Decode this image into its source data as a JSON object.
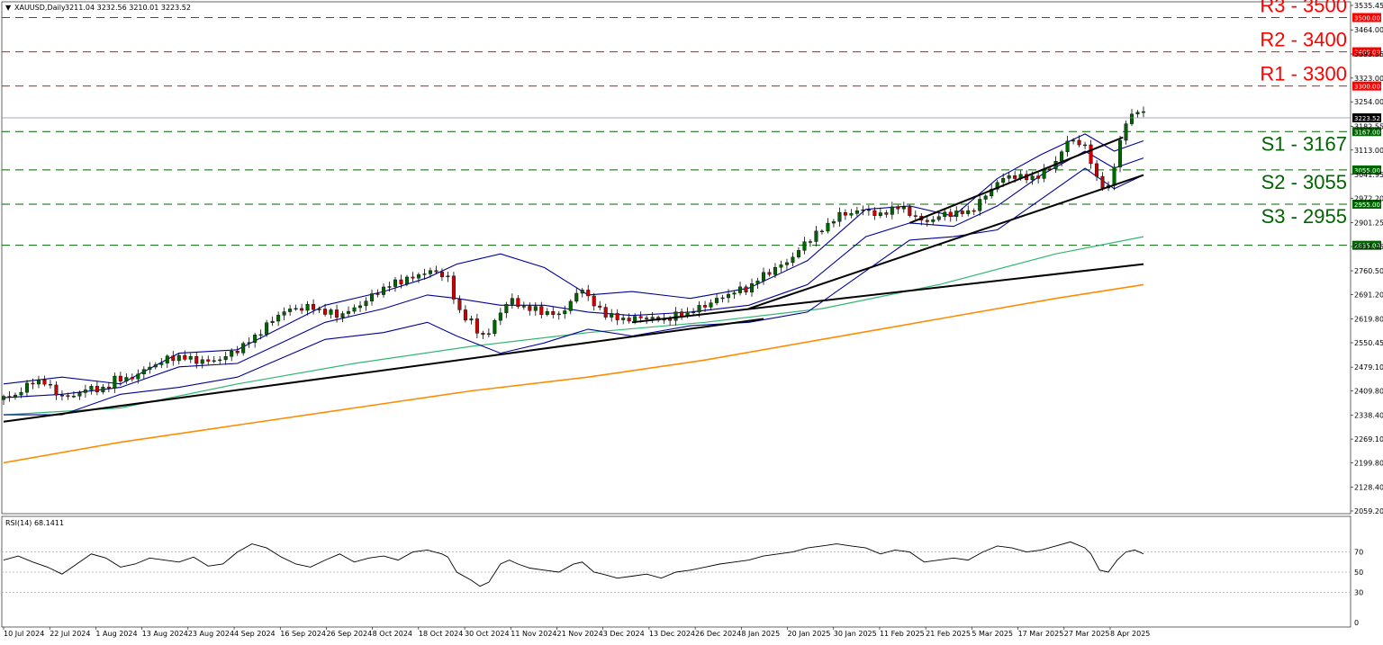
{
  "header": {
    "arrow_glyph": "▼",
    "symbol": "XAUUSD,Daily",
    "ohlc": "3211.04 3232.56 3210.01 3223.52"
  },
  "rsi_panel": {
    "title": "RSI(14) 68.1411",
    "levels": [
      "70",
      "50",
      "30",
      "0"
    ]
  },
  "price_axis": {
    "ticks": [
      "3535.45",
      "3464.00",
      "3393.55",
      "3323.00",
      "3254.00",
      "3182.55",
      "3113.00",
      "3041.95",
      "2972.20",
      "2901.25",
      "2831.45",
      "2760.50",
      "2691.20",
      "2619.80",
      "2550.45",
      "2479.10",
      "2409.80",
      "2338.40",
      "2269.10",
      "2199.80",
      "2128.40",
      "2059.20"
    ],
    "current_price": "3223.52"
  },
  "levels": [
    {
      "type": "resistance",
      "label": "R3 - 3500",
      "price_tag": "3500.00",
      "value": 3500
    },
    {
      "type": "resistance",
      "label": "R2 - 3400",
      "price_tag": "3400.00",
      "value": 3400
    },
    {
      "type": "resistance",
      "label": "R1 - 3300",
      "price_tag": "3300.00",
      "value": 3300
    },
    {
      "type": "support",
      "label": "S1 - 3167",
      "price_tag": "3167.00",
      "value": 3167
    },
    {
      "type": "support",
      "label": "S2 - 3055",
      "price_tag": "3055.00",
      "value": 3055
    },
    {
      "type": "support",
      "label": "S3 - 2955",
      "price_tag": "2955.00",
      "value": 2955
    },
    {
      "type": "support",
      "label": "",
      "price_tag": "2835.00",
      "value": 2835
    }
  ],
  "colors": {
    "resistance": "#ff0000",
    "support": "#006400",
    "bull": "#006400",
    "bear": "#cc0000",
    "bollinger": "#000099",
    "ma_mid": "#2eb872",
    "ma_long": "#ff8c00",
    "rsi": "#000000"
  },
  "chart_data": {
    "type": "candlestick",
    "title": "XAUUSD,Daily",
    "x_ticks": [
      "10 Jul 2024",
      "22 Jul 2024",
      "1 Aug 2024",
      "13 Aug 2024",
      "23 Aug 2024",
      "4 Sep 2024",
      "16 Sep 2024",
      "26 Sep 2024",
      "8 Oct 2024",
      "18 Oct 2024",
      "30 Oct 2024",
      "11 Nov 2024",
      "21 Nov 2024",
      "3 Dec 2024",
      "13 Dec 2024",
      "26 Dec 2024",
      "8 Jan 2025",
      "20 Jan 2025",
      "30 Jan 2025",
      "11 Feb 2025",
      "21 Feb 2025",
      "5 Mar 2025",
      "17 Mar 2025",
      "27 Mar 2025",
      "8 Apr 2025"
    ],
    "ylim": [
      2059.2,
      3535.45
    ],
    "close_path": [
      [
        0,
        2390
      ],
      [
        5,
        2400
      ],
      [
        10,
        2440
      ],
      [
        15,
        2430
      ],
      [
        20,
        2390
      ],
      [
        25,
        2400
      ],
      [
        30,
        2420
      ],
      [
        35,
        2410
      ],
      [
        38,
        2450
      ],
      [
        42,
        2440
      ],
      [
        48,
        2470
      ],
      [
        55,
        2500
      ],
      [
        60,
        2510
      ],
      [
        65,
        2500
      ],
      [
        70,
        2495
      ],
      [
        75,
        2505
      ],
      [
        80,
        2530
      ],
      [
        85,
        2560
      ],
      [
        90,
        2600
      ],
      [
        95,
        2640
      ],
      [
        100,
        2650
      ],
      [
        105,
        2655
      ],
      [
        110,
        2640
      ],
      [
        115,
        2630
      ],
      [
        120,
        2650
      ],
      [
        125,
        2680
      ],
      [
        130,
        2710
      ],
      [
        135,
        2730
      ],
      [
        140,
        2740
      ],
      [
        145,
        2760
      ],
      [
        150,
        2750
      ],
      [
        152,
        2740
      ],
      [
        155,
        2650
      ],
      [
        160,
        2610
      ],
      [
        163,
        2570
      ],
      [
        166,
        2580
      ],
      [
        170,
        2640
      ],
      [
        173,
        2680
      ],
      [
        176,
        2660
      ],
      [
        180,
        2650
      ],
      [
        185,
        2640
      ],
      [
        190,
        2630
      ],
      [
        195,
        2680
      ],
      [
        198,
        2710
      ],
      [
        202,
        2660
      ],
      [
        205,
        2640
      ],
      [
        210,
        2620
      ],
      [
        215,
        2620
      ],
      [
        220,
        2625
      ],
      [
        225,
        2615
      ],
      [
        230,
        2630
      ],
      [
        235,
        2640
      ],
      [
        240,
        2660
      ],
      [
        245,
        2680
      ],
      [
        250,
        2700
      ],
      [
        255,
        2710
      ],
      [
        260,
        2750
      ],
      [
        265,
        2770
      ],
      [
        270,
        2800
      ],
      [
        275,
        2850
      ],
      [
        280,
        2880
      ],
      [
        285,
        2920
      ],
      [
        290,
        2930
      ],
      [
        295,
        2940
      ],
      [
        300,
        2920
      ],
      [
        305,
        2950
      ],
      [
        310,
        2930
      ],
      [
        315,
        2900
      ],
      [
        320,
        2920
      ],
      [
        325,
        2930
      ],
      [
        330,
        2930
      ],
      [
        335,
        2970
      ],
      [
        340,
        3020
      ],
      [
        345,
        3040
      ],
      [
        350,
        3030
      ],
      [
        355,
        3040
      ],
      [
        360,
        3080
      ],
      [
        365,
        3150
      ],
      [
        370,
        3120
      ],
      [
        372,
        3080
      ],
      [
        375,
        3010
      ],
      [
        378,
        3000
      ],
      [
        381,
        3110
      ],
      [
        384,
        3190
      ],
      [
        387,
        3230
      ],
      [
        390,
        3223.52
      ]
    ],
    "x_max": 390,
    "bollinger": {
      "upper": [
        [
          0,
          2430
        ],
        [
          20,
          2450
        ],
        [
          40,
          2430
        ],
        [
          60,
          2520
        ],
        [
          80,
          2530
        ],
        [
          110,
          2660
        ],
        [
          130,
          2700
        ],
        [
          145,
          2740
        ],
        [
          155,
          2780
        ],
        [
          170,
          2810
        ],
        [
          185,
          2770
        ],
        [
          200,
          2690
        ],
        [
          215,
          2700
        ],
        [
          235,
          2680
        ],
        [
          255,
          2710
        ],
        [
          275,
          2790
        ],
        [
          295,
          2940
        ],
        [
          310,
          2950
        ],
        [
          325,
          2920
        ],
        [
          340,
          3030
        ],
        [
          355,
          3100
        ],
        [
          370,
          3160
        ],
        [
          380,
          3110
        ],
        [
          390,
          3140
        ]
      ],
      "middle": [
        [
          0,
          2390
        ],
        [
          20,
          2400
        ],
        [
          40,
          2420
        ],
        [
          60,
          2480
        ],
        [
          80,
          2490
        ],
        [
          110,
          2610
        ],
        [
          130,
          2650
        ],
        [
          145,
          2690
        ],
        [
          155,
          2680
        ],
        [
          170,
          2660
        ],
        [
          185,
          2660
        ],
        [
          200,
          2640
        ],
        [
          215,
          2630
        ],
        [
          235,
          2640
        ],
        [
          255,
          2660
        ],
        [
          275,
          2720
        ],
        [
          295,
          2860
        ],
        [
          310,
          2900
        ],
        [
          325,
          2890
        ],
        [
          340,
          2950
        ],
        [
          355,
          3040
        ],
        [
          370,
          3110
        ],
        [
          380,
          3060
        ],
        [
          390,
          3090
        ]
      ],
      "lower": [
        [
          0,
          2340
        ],
        [
          20,
          2340
        ],
        [
          40,
          2400
        ],
        [
          60,
          2420
        ],
        [
          80,
          2450
        ],
        [
          110,
          2560
        ],
        [
          130,
          2580
        ],
        [
          145,
          2610
        ],
        [
          155,
          2570
        ],
        [
          170,
          2520
        ],
        [
          185,
          2550
        ],
        [
          200,
          2590
        ],
        [
          215,
          2570
        ],
        [
          235,
          2600
        ],
        [
          255,
          2610
        ],
        [
          275,
          2640
        ],
        [
          295,
          2760
        ],
        [
          310,
          2850
        ],
        [
          325,
          2860
        ],
        [
          340,
          2880
        ],
        [
          355,
          2970
        ],
        [
          370,
          3060
        ],
        [
          380,
          3000
        ],
        [
          390,
          3040
        ]
      ]
    },
    "ma_mid": [
      [
        0,
        2340
      ],
      [
        40,
        2360
      ],
      [
        80,
        2430
      ],
      [
        120,
        2490
      ],
      [
        160,
        2540
      ],
      [
        200,
        2580
      ],
      [
        240,
        2610
      ],
      [
        280,
        2650
      ],
      [
        320,
        2720
      ],
      [
        360,
        2810
      ],
      [
        390,
        2860
      ]
    ],
    "ma_long": [
      [
        0,
        2200
      ],
      [
        40,
        2260
      ],
      [
        80,
        2310
      ],
      [
        120,
        2360
      ],
      [
        160,
        2410
      ],
      [
        200,
        2450
      ],
      [
        240,
        2500
      ],
      [
        280,
        2560
      ],
      [
        320,
        2620
      ],
      [
        360,
        2680
      ],
      [
        390,
        2720
      ]
    ],
    "trendlines": [
      [
        [
          0,
          2320
        ],
        [
          260,
          2620
        ]
      ],
      [
        [
          215,
          2610
        ],
        [
          390,
          2780
        ]
      ],
      [
        [
          255,
          2650
        ],
        [
          390,
          3040
        ]
      ],
      [
        [
          310,
          2900
        ],
        [
          383,
          3150
        ]
      ]
    ],
    "rsi": [
      [
        0,
        62
      ],
      [
        5,
        66
      ],
      [
        10,
        60
      ],
      [
        15,
        55
      ],
      [
        20,
        48
      ],
      [
        25,
        58
      ],
      [
        30,
        68
      ],
      [
        35,
        64
      ],
      [
        40,
        55
      ],
      [
        45,
        58
      ],
      [
        50,
        64
      ],
      [
        55,
        62
      ],
      [
        60,
        60
      ],
      [
        65,
        65
      ],
      [
        70,
        56
      ],
      [
        75,
        58
      ],
      [
        80,
        70
      ],
      [
        85,
        78
      ],
      [
        90,
        74
      ],
      [
        95,
        65
      ],
      [
        100,
        58
      ],
      [
        105,
        55
      ],
      [
        110,
        62
      ],
      [
        115,
        68
      ],
      [
        120,
        60
      ],
      [
        125,
        64
      ],
      [
        130,
        66
      ],
      [
        135,
        62
      ],
      [
        140,
        70
      ],
      [
        145,
        72
      ],
      [
        150,
        68
      ],
      [
        152,
        65
      ],
      [
        155,
        50
      ],
      [
        160,
        42
      ],
      [
        163,
        36
      ],
      [
        166,
        40
      ],
      [
        170,
        58
      ],
      [
        173,
        62
      ],
      [
        176,
        58
      ],
      [
        180,
        54
      ],
      [
        185,
        52
      ],
      [
        190,
        50
      ],
      [
        195,
        58
      ],
      [
        198,
        60
      ],
      [
        202,
        50
      ],
      [
        205,
        48
      ],
      [
        210,
        44
      ],
      [
        215,
        46
      ],
      [
        220,
        48
      ],
      [
        225,
        44
      ],
      [
        230,
        50
      ],
      [
        235,
        52
      ],
      [
        240,
        55
      ],
      [
        245,
        58
      ],
      [
        250,
        60
      ],
      [
        255,
        62
      ],
      [
        260,
        66
      ],
      [
        265,
        68
      ],
      [
        270,
        70
      ],
      [
        275,
        74
      ],
      [
        280,
        76
      ],
      [
        285,
        78
      ],
      [
        290,
        76
      ],
      [
        295,
        74
      ],
      [
        300,
        68
      ],
      [
        305,
        72
      ],
      [
        310,
        70
      ],
      [
        315,
        60
      ],
      [
        320,
        62
      ],
      [
        325,
        64
      ],
      [
        330,
        62
      ],
      [
        335,
        70
      ],
      [
        340,
        76
      ],
      [
        345,
        74
      ],
      [
        350,
        70
      ],
      [
        355,
        72
      ],
      [
        360,
        76
      ],
      [
        365,
        80
      ],
      [
        370,
        74
      ],
      [
        372,
        68
      ],
      [
        375,
        52
      ],
      [
        378,
        50
      ],
      [
        381,
        62
      ],
      [
        384,
        70
      ],
      [
        387,
        72
      ],
      [
        390,
        68.14
      ]
    ],
    "rsi_ylim": [
      0,
      100
    ]
  }
}
